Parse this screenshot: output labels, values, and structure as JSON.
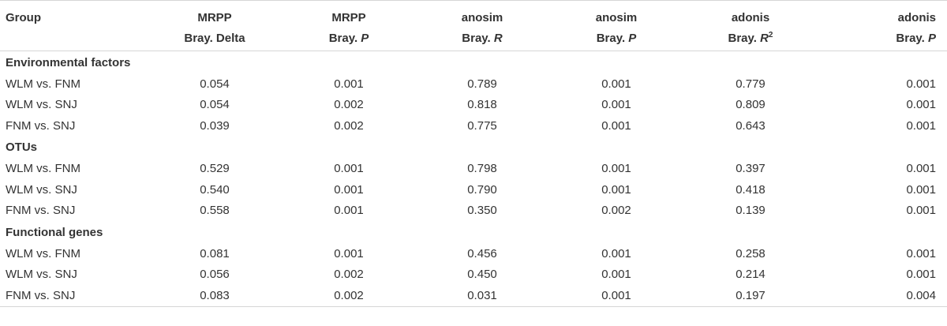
{
  "headers": {
    "group": "Group",
    "cols": [
      {
        "line1": "MRPP",
        "line2_prefix": "Bray. Delta",
        "line2_italic": "",
        "sup": ""
      },
      {
        "line1": "MRPP",
        "line2_prefix": "Bray. ",
        "line2_italic": "P",
        "sup": ""
      },
      {
        "line1": "anosim",
        "line2_prefix": "Bray. ",
        "line2_italic": "R",
        "sup": ""
      },
      {
        "line1": "anosim",
        "line2_prefix": "Bray. ",
        "line2_italic": "P",
        "sup": ""
      },
      {
        "line1": "adonis",
        "line2_prefix": "Bray. ",
        "line2_italic": "R",
        "sup": "2"
      },
      {
        "line1": "adonis",
        "line2_prefix": "Bray. ",
        "line2_italic": "P",
        "sup": ""
      }
    ]
  },
  "sections": [
    {
      "title": "Environmental factors",
      "rows": [
        {
          "label": "WLM vs. FNM",
          "values": [
            "0.054",
            "0.001",
            "0.789",
            "0.001",
            "0.779",
            "0.001"
          ]
        },
        {
          "label": "WLM vs. SNJ",
          "values": [
            "0.054",
            "0.002",
            "0.818",
            "0.001",
            "0.809",
            "0.001"
          ]
        },
        {
          "label": "FNM vs. SNJ",
          "values": [
            "0.039",
            "0.002",
            "0.775",
            "0.001",
            "0.643",
            "0.001"
          ]
        }
      ]
    },
    {
      "title": "OTUs",
      "rows": [
        {
          "label": "WLM vs. FNM",
          "values": [
            "0.529",
            "0.001",
            "0.798",
            "0.001",
            "0.397",
            "0.001"
          ]
        },
        {
          "label": "WLM vs. SNJ",
          "values": [
            "0.540",
            "0.001",
            "0.790",
            "0.001",
            "0.418",
            "0.001"
          ]
        },
        {
          "label": "FNM vs. SNJ",
          "values": [
            "0.558",
            "0.001",
            "0.350",
            "0.002",
            "0.139",
            "0.001"
          ]
        }
      ]
    },
    {
      "title": "Functional genes",
      "rows": [
        {
          "label": "WLM vs. FNM",
          "values": [
            "0.081",
            "0.001",
            "0.456",
            "0.001",
            "0.258",
            "0.001"
          ]
        },
        {
          "label": "WLM vs. SNJ",
          "values": [
            "0.056",
            "0.002",
            "0.450",
            "0.001",
            "0.214",
            "0.001"
          ]
        },
        {
          "label": "FNM vs. SNJ",
          "values": [
            "0.083",
            "0.002",
            "0.031",
            "0.001",
            "0.197",
            "0.004"
          ]
        }
      ]
    }
  ]
}
